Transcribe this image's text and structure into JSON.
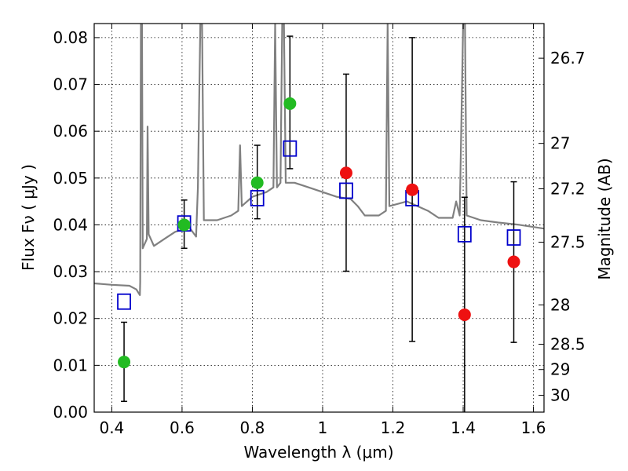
{
  "chart_data": {
    "type": "scatter",
    "xlabel": "Wavelength  λ (μm)",
    "ylabel": "Flux  Fν  ( μJy )",
    "ylabel_right": "Magnitude (AB)",
    "xlim": [
      0.35,
      1.63
    ],
    "ylim": [
      0.0,
      0.083
    ],
    "grid": true,
    "x_ticks": [
      0.4,
      0.6,
      0.8,
      1.0,
      1.2,
      1.4,
      1.6
    ],
    "x_tick_labels": [
      "0.4",
      "0.6",
      "0.8",
      "1",
      "1.2",
      "1.4",
      "1.6"
    ],
    "y_ticks": [
      0.0,
      0.01,
      0.02,
      0.03,
      0.04,
      0.05,
      0.06,
      0.07,
      0.08
    ],
    "y_tick_labels": [
      "0.00",
      "0.01",
      "0.02",
      "0.03",
      "0.04",
      "0.05",
      "0.06",
      "0.07",
      "0.08"
    ],
    "right_ticks": [
      {
        "label": "26.7",
        "flux": 0.0756
      },
      {
        "label": "27",
        "flux": 0.0574
      },
      {
        "label": "27.2",
        "flux": 0.0477
      },
      {
        "label": "27.5",
        "flux": 0.0363
      },
      {
        "label": "28",
        "flux": 0.0229
      },
      {
        "label": "28.5",
        "flux": 0.0145
      },
      {
        "label": "29",
        "flux": 0.0091
      },
      {
        "label": "30",
        "flux": 0.0036
      }
    ],
    "series": [
      {
        "marker": "circle",
        "color": "#22bb22",
        "points": [
          {
            "x": 0.435,
            "y": 0.0107,
            "err_low": 0.0023,
            "err_high": 0.0192
          },
          {
            "x": 0.606,
            "y": 0.04,
            "err_low": 0.035,
            "err_high": 0.0453
          },
          {
            "x": 0.814,
            "y": 0.049,
            "err_low": 0.0413,
            "err_high": 0.057
          },
          {
            "x": 0.907,
            "y": 0.0659,
            "err_low": 0.052,
            "err_high": 0.0803
          }
        ]
      },
      {
        "marker": "circle",
        "color": "#ee1111",
        "points": [
          {
            "x": 1.067,
            "y": 0.0511,
            "err_low": 0.0301,
            "err_high": 0.0722
          },
          {
            "x": 1.255,
            "y": 0.0475,
            "err_low": 0.0151,
            "err_high": 0.08
          },
          {
            "x": 1.404,
            "y": 0.0208,
            "err_low": 0.0,
            "err_high": 0.0459
          },
          {
            "x": 1.544,
            "y": 0.0321,
            "err_low": 0.0149,
            "err_high": 0.0492
          }
        ]
      },
      {
        "marker": "open-square",
        "color": "#0000cc",
        "points": [
          {
            "x": 0.435,
            "y": 0.0236
          },
          {
            "x": 0.606,
            "y": 0.0403
          },
          {
            "x": 0.814,
            "y": 0.0457
          },
          {
            "x": 0.907,
            "y": 0.0563
          },
          {
            "x": 1.067,
            "y": 0.0473
          },
          {
            "x": 1.255,
            "y": 0.0457
          },
          {
            "x": 1.404,
            "y": 0.038
          },
          {
            "x": 1.544,
            "y": 0.0373
          }
        ]
      },
      {
        "marker": "line",
        "color": "#808080",
        "points": [
          {
            "x": 0.35,
            "y": 0.0275
          },
          {
            "x": 0.4,
            "y": 0.0272
          },
          {
            "x": 0.45,
            "y": 0.027
          },
          {
            "x": 0.47,
            "y": 0.0262
          },
          {
            "x": 0.48,
            "y": 0.025
          },
          {
            "x": 0.481,
            "y": 0.0278
          },
          {
            "x": 0.483,
            "y": 0.083
          },
          {
            "x": 0.486,
            "y": 0.083
          },
          {
            "x": 0.488,
            "y": 0.035
          },
          {
            "x": 0.5,
            "y": 0.037
          },
          {
            "x": 0.502,
            "y": 0.061
          },
          {
            "x": 0.505,
            "y": 0.038
          },
          {
            "x": 0.52,
            "y": 0.0355
          },
          {
            "x": 0.55,
            "y": 0.037
          },
          {
            "x": 0.58,
            "y": 0.0385
          },
          {
            "x": 0.62,
            "y": 0.0395
          },
          {
            "x": 0.64,
            "y": 0.0375
          },
          {
            "x": 0.645,
            "y": 0.048
          },
          {
            "x": 0.652,
            "y": 0.083
          },
          {
            "x": 0.657,
            "y": 0.083
          },
          {
            "x": 0.662,
            "y": 0.041
          },
          {
            "x": 0.7,
            "y": 0.041
          },
          {
            "x": 0.74,
            "y": 0.042
          },
          {
            "x": 0.76,
            "y": 0.043
          },
          {
            "x": 0.765,
            "y": 0.057
          },
          {
            "x": 0.77,
            "y": 0.044
          },
          {
            "x": 0.8,
            "y": 0.046
          },
          {
            "x": 0.84,
            "y": 0.047
          },
          {
            "x": 0.86,
            "y": 0.048
          },
          {
            "x": 0.865,
            "y": 0.083
          },
          {
            "x": 0.87,
            "y": 0.048
          },
          {
            "x": 0.88,
            "y": 0.049
          },
          {
            "x": 0.885,
            "y": 0.083
          },
          {
            "x": 0.89,
            "y": 0.083
          },
          {
            "x": 0.895,
            "y": 0.049
          },
          {
            "x": 0.92,
            "y": 0.049
          },
          {
            "x": 0.96,
            "y": 0.048
          },
          {
            "x": 1.0,
            "y": 0.047
          },
          {
            "x": 1.04,
            "y": 0.046
          },
          {
            "x": 1.08,
            "y": 0.0455
          },
          {
            "x": 1.1,
            "y": 0.044
          },
          {
            "x": 1.12,
            "y": 0.042
          },
          {
            "x": 1.16,
            "y": 0.042
          },
          {
            "x": 1.18,
            "y": 0.043
          },
          {
            "x": 1.185,
            "y": 0.083
          },
          {
            "x": 1.19,
            "y": 0.044
          },
          {
            "x": 1.24,
            "y": 0.045
          },
          {
            "x": 1.3,
            "y": 0.043
          },
          {
            "x": 1.33,
            "y": 0.0415
          },
          {
            "x": 1.37,
            "y": 0.0415
          },
          {
            "x": 1.38,
            "y": 0.045
          },
          {
            "x": 1.39,
            "y": 0.042
          },
          {
            "x": 1.4,
            "y": 0.083
          },
          {
            "x": 1.405,
            "y": 0.083
          },
          {
            "x": 1.41,
            "y": 0.042
          },
          {
            "x": 1.45,
            "y": 0.041
          },
          {
            "x": 1.5,
            "y": 0.0405
          },
          {
            "x": 1.56,
            "y": 0.04
          },
          {
            "x": 1.63,
            "y": 0.0392
          }
        ]
      }
    ]
  }
}
